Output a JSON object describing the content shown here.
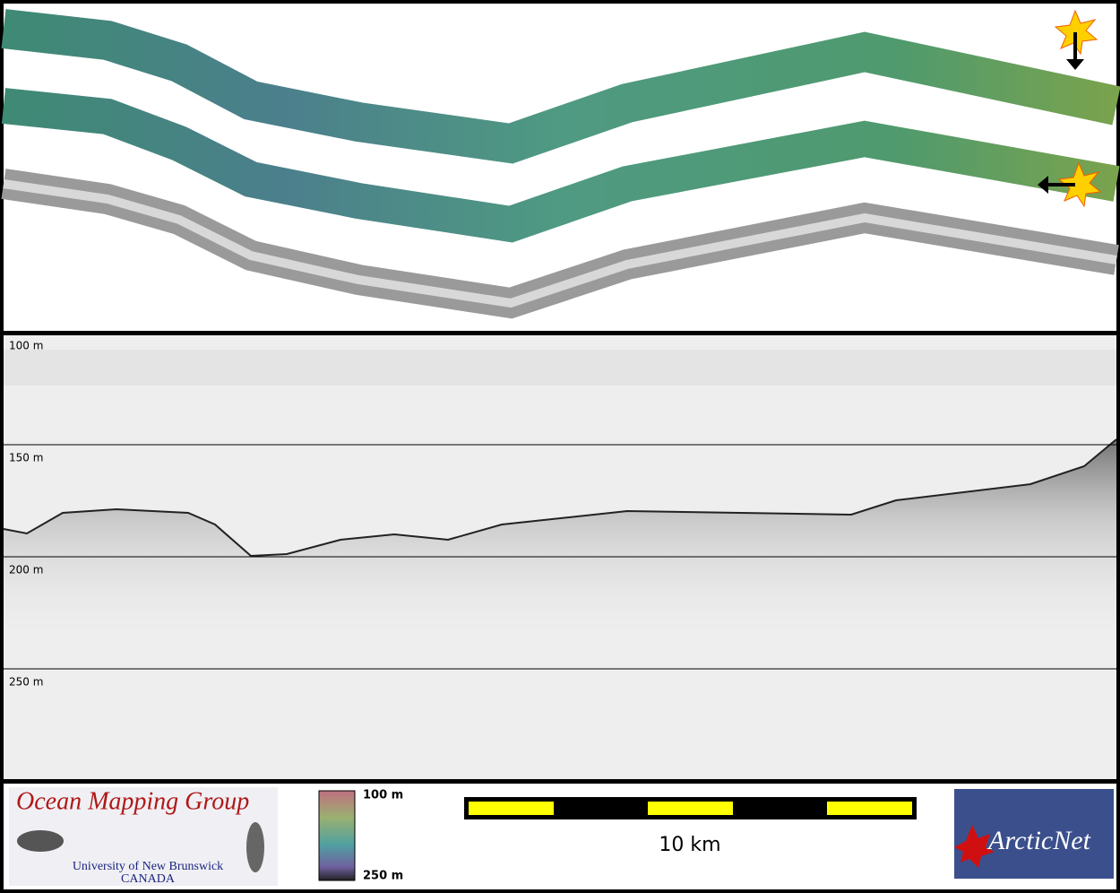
{
  "profile": {
    "depth_labels": [
      "100 m",
      "150 m",
      "200 m",
      "250 m"
    ]
  },
  "colorbar": {
    "top_label": "100 m",
    "bottom_label": "250 m"
  },
  "scale_bar": {
    "label": "10 km"
  },
  "logos": {
    "left_title": "Ocean Mapping Group",
    "left_line1": "University of New Brunswick",
    "left_line2": "CANADA",
    "right_title": "ArcticNet"
  }
}
